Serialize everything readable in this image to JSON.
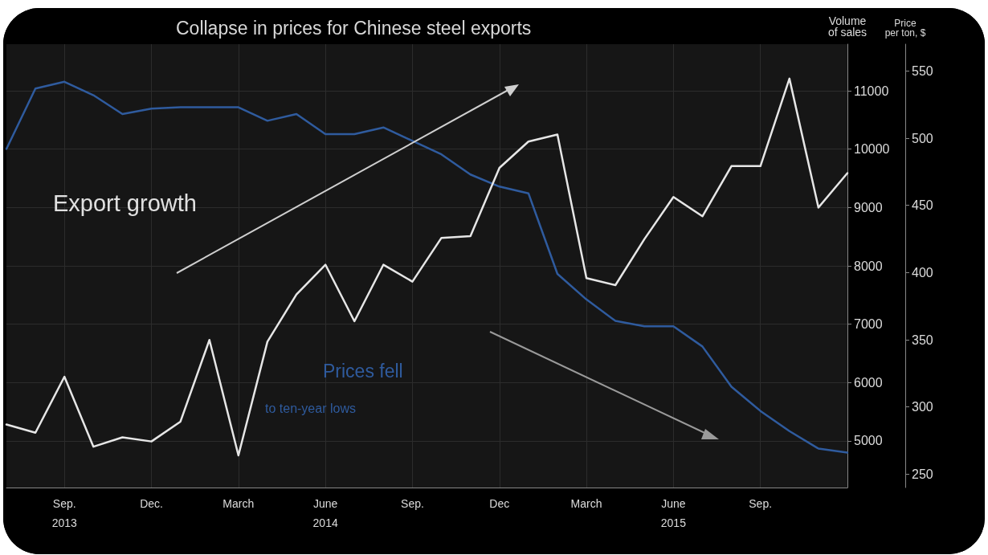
{
  "chart_data": {
    "type": "line",
    "title": "Collapse in prices for Chinese steel exports",
    "categories": [
      null,
      null,
      "Sep.\n2013",
      null,
      null,
      "Dec.",
      null,
      null,
      "March",
      null,
      null,
      "June\n2014",
      null,
      null,
      "Sep.",
      null,
      null,
      "Dec",
      null,
      null,
      "March",
      null,
      null,
      "June\n2015",
      null,
      null,
      "Sep.",
      null,
      null,
      null
    ],
    "series": [
      {
        "color": "#e6e6e6",
        "values": [
          5280,
          5140,
          6100,
          4900,
          5060,
          4990,
          5330,
          6730,
          4750,
          6700,
          7510,
          8020,
          7050,
          8020,
          7730,
          8480,
          8510,
          9680,
          10130,
          10250,
          7790,
          7670,
          8460,
          9180,
          8850,
          9710,
          9710,
          11210,
          9000,
          9590
        ]
      },
      {
        "color": "#2f5b9e",
        "axis": "y2",
        "values": [
          492,
          537,
          542,
          532,
          518,
          522,
          523,
          523,
          523,
          513,
          518,
          503,
          503,
          508,
          498,
          488,
          473,
          464,
          459,
          399,
          380,
          364,
          360,
          360,
          345,
          315,
          297,
          282,
          269,
          266
        ]
      }
    ],
    "ylabel": "Volume\nof sales",
    "y2label": "Price\nper ton, $",
    "ylim": [
      4200,
      11800
    ],
    "yticks": [
      5000,
      6000,
      7000,
      8000,
      9000,
      10000,
      11000
    ],
    "y2lim": [
      240,
      570
    ],
    "y2ticks": [
      250,
      300,
      350,
      400,
      450,
      500,
      550
    ],
    "grid": true,
    "annotations": [
      "Export growth",
      "Prices fell",
      "to ten-year lows"
    ]
  }
}
